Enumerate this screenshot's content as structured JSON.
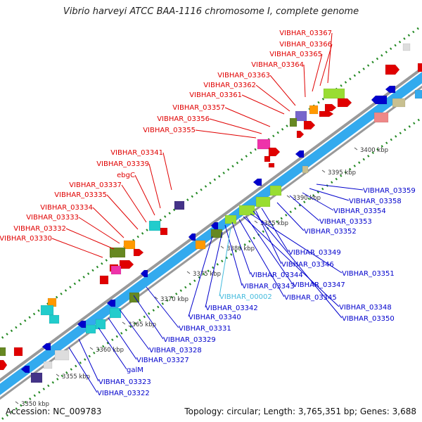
{
  "title": "Vibrio harveyi ATCC BAA-1116 chromosome I, complete genome",
  "footer": {
    "accession": "Accession: NC_009783",
    "topology": "Topology: circular; Length: 3,765,351 bp; Genes: 3,688"
  },
  "colors": {
    "forward_label": "#e00000",
    "reverse_label": "#0000cc",
    "highlight_label": "#44bbdd",
    "backbone": "#999999",
    "cds_track": "#33aaee",
    "gc_dots": "#228822"
  },
  "scale": {
    "unit": "kbp",
    "ticks": [
      "3350 kbp",
      "3355 kbp",
      "3360 kbp",
      "3365 kbp",
      "3370 kbp",
      "3375 kbp",
      "3380 kbp",
      "3385 kbp",
      "3390 kbp",
      "3395 kbp",
      "3400 kbp"
    ]
  },
  "forward_genes": [
    "VIBHAR_03367",
    "VIBHAR_03366",
    "VIBHAR_03365",
    "VIBHAR_03364",
    "VIBHAR_03363",
    "VIBHAR_03362",
    "VIBHAR_03361",
    "VIBHAR_03357",
    "VIBHAR_03356",
    "VIBHAR_03355",
    "VIBHAR_03341",
    "VIBHAR_03339",
    "ebgC",
    "VIBHAR_03337",
    "VIBHAR_03335",
    "VIBHAR_03334",
    "VIBHAR_03333",
    "VIBHAR_03332",
    "VIBHAR_03330"
  ],
  "reverse_genes": [
    "VIBHAR_03359",
    "VIBHAR_03358",
    "VIBHAR_03354",
    "VIBHAR_03353",
    "VIBHAR_03352",
    "VIBHAR_03349",
    "VIBHAR_03346",
    "VIBHAR_03351",
    "VIBHAR_03347",
    "VIBHAR_03344",
    "VIBHAR_03343",
    "VIBHAR_03345",
    "VIBHAR_00002",
    "VIBHAR_03348",
    "VIBHAR_03342",
    "VIBHAR_03350",
    "VIBHAR_03340",
    "VIBHAR_03331",
    "VIBHAR_03329",
    "VIBHAR_03328",
    "VIBHAR_03327",
    "galM",
    "VIBHAR_03323",
    "VIBHAR_03322"
  ],
  "highlighted_gene": "VIBHAR_00002"
}
